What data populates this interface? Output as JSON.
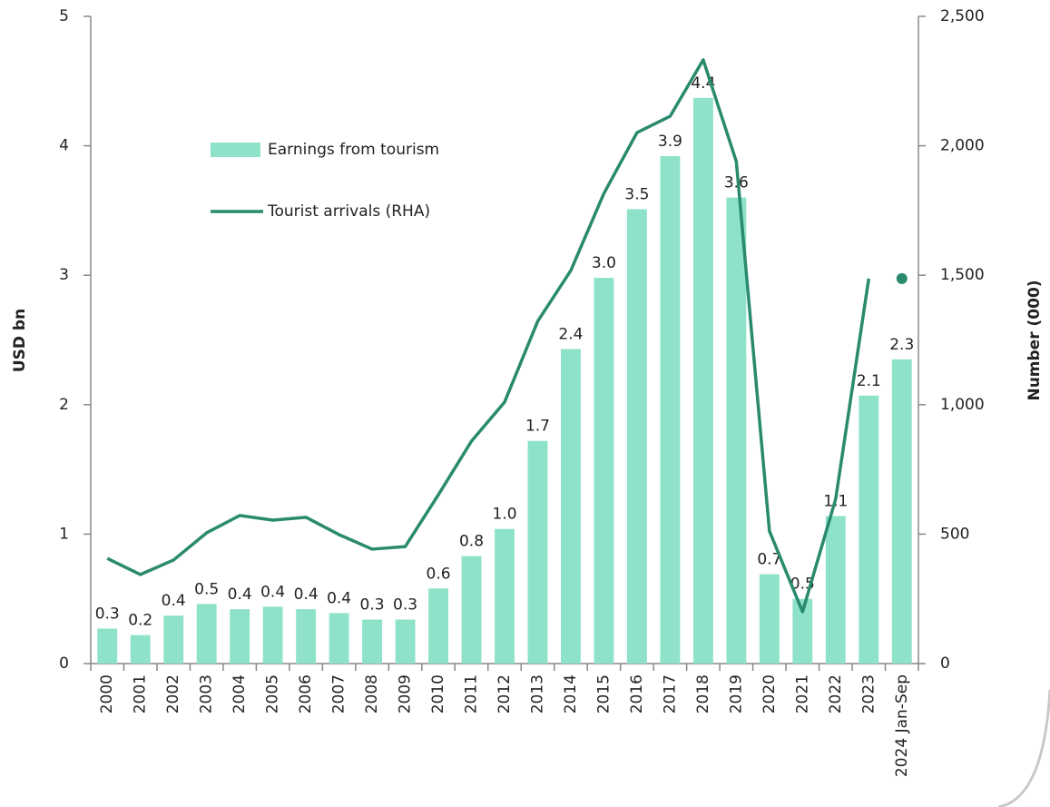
{
  "chart_data": {
    "type": "bar-line",
    "categories": [
      "2000",
      "2001",
      "2002",
      "2003",
      "2004",
      "2005",
      "2006",
      "2007",
      "2008",
      "2009",
      "2010",
      "2011",
      "2012",
      "2013",
      "2014",
      "2015",
      "2016",
      "2017",
      "2018",
      "2019",
      "2020",
      "2021",
      "2022",
      "2023",
      "2024 Jan-Sep"
    ],
    "series": [
      {
        "name": "Earnings from tourism",
        "type": "bar",
        "color": "#8ee2c9",
        "values": [
          0.27,
          0.22,
          0.37,
          0.46,
          0.42,
          0.44,
          0.42,
          0.39,
          0.34,
          0.34,
          0.58,
          0.83,
          1.04,
          1.72,
          2.43,
          2.98,
          3.51,
          3.92,
          4.37,
          3.6,
          0.69,
          0.5,
          1.14,
          2.07,
          2.35
        ],
        "value_labels": [
          "0.3",
          "0.2",
          "0.4",
          "0.5",
          "0.4",
          "0.4",
          "0.4",
          "0.4",
          "0.3",
          "0.3",
          "0.6",
          "0.8",
          "1.0",
          "1.7",
          "2.4",
          "3.0",
          "3.5",
          "3.9",
          "4.4",
          "3.6",
          "0.7",
          "0.5",
          "1.1",
          "2.1",
          "2.3"
        ]
      },
      {
        "name": "Tourist arrivals (RHA)",
        "type": "line",
        "axis": "y2",
        "color": "#2a8a6e",
        "detached_last": true,
        "values": [
          406,
          344,
          400,
          505,
          572,
          554,
          565,
          498,
          442,
          452,
          652,
          859,
          1010,
          1322,
          1518,
          1816,
          2051,
          2114,
          2332,
          1939,
          512,
          200,
          635,
          1487,
          1487
        ]
      }
    ],
    "ylabel": "USD bn",
    "y2label": "Number (000)",
    "ylim": [
      0,
      5
    ],
    "yticks": [
      0,
      1,
      2,
      3,
      4,
      5
    ],
    "y2lim": [
      0,
      2500
    ],
    "y2ticks": [
      0,
      500,
      {
        "value": 1000,
        "label": "1,000"
      },
      {
        "value": 1500,
        "label": "1,500"
      },
      {
        "value": 2000,
        "label": "2,000"
      },
      {
        "value": 2500,
        "label": "2,500"
      }
    ],
    "legend": "upper left"
  }
}
